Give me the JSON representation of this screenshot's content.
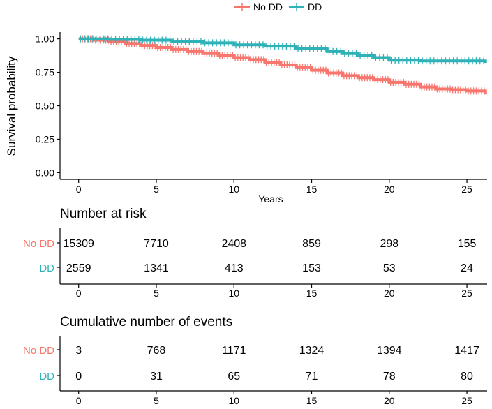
{
  "chart_data": {
    "type": "line",
    "subtype": "kaplan-meier survival curve",
    "legend": {
      "position": "top",
      "entries": [
        {
          "name": "No DD",
          "color": "#F8766D"
        },
        {
          "name": "DD",
          "color": "#2EB2B8"
        }
      ]
    },
    "xlabel": "Years",
    "ylabel": "Survival probability",
    "xlim": [
      -1.2,
      26.3
    ],
    "ylim": [
      -0.05,
      1.05
    ],
    "x_ticks": [
      0,
      5,
      10,
      15,
      20,
      25
    ],
    "y_ticks": [
      0.0,
      0.25,
      0.5,
      0.75,
      1.0
    ],
    "y_tick_labels": [
      "0.00",
      "0.25",
      "0.50",
      "0.75",
      "1.00"
    ],
    "series": [
      {
        "name": "No DD",
        "color": "#F8766D",
        "x": [
          0,
          1,
          2,
          3,
          4,
          5,
          6,
          7,
          8,
          9,
          10,
          11,
          12,
          13,
          14,
          15,
          16,
          17,
          18,
          19,
          20,
          21,
          22,
          23,
          24,
          25,
          26.2
        ],
        "y": [
          1.0,
          0.99,
          0.98,
          0.965,
          0.95,
          0.935,
          0.92,
          0.905,
          0.89,
          0.875,
          0.86,
          0.845,
          0.825,
          0.805,
          0.785,
          0.765,
          0.745,
          0.725,
          0.71,
          0.695,
          0.675,
          0.66,
          0.64,
          0.625,
          0.62,
          0.61,
          0.585
        ]
      },
      {
        "name": "DD",
        "color": "#2EB2B8",
        "x": [
          0,
          2,
          4,
          6,
          8,
          10,
          12,
          14,
          16,
          17,
          18,
          19,
          20,
          22,
          24,
          25,
          26.2
        ],
        "y": [
          1.0,
          0.995,
          0.99,
          0.98,
          0.97,
          0.955,
          0.945,
          0.925,
          0.905,
          0.89,
          0.875,
          0.86,
          0.84,
          0.835,
          0.835,
          0.835,
          0.82
        ]
      }
    ],
    "tables": [
      {
        "title": "Number at risk",
        "rows": [
          {
            "group": "No DD",
            "color": "#F8766D",
            "values": [
              "15309",
              "7710",
              "2408",
              "859",
              "298",
              "155"
            ]
          },
          {
            "group": "DD",
            "color": "#2EB2B8",
            "values": [
              "2559",
              "1341",
              "413",
              "153",
              "53",
              "24"
            ]
          }
        ]
      },
      {
        "title": "Cumulative number of events",
        "rows": [
          {
            "group": "No DD",
            "color": "#F8766D",
            "values": [
              "3",
              "768",
              "1171",
              "1324",
              "1394",
              "1417"
            ]
          },
          {
            "group": "DD",
            "color": "#2EB2B8",
            "values": [
              "0",
              "31",
              "65",
              "71",
              "78",
              "80"
            ]
          }
        ]
      }
    ]
  }
}
